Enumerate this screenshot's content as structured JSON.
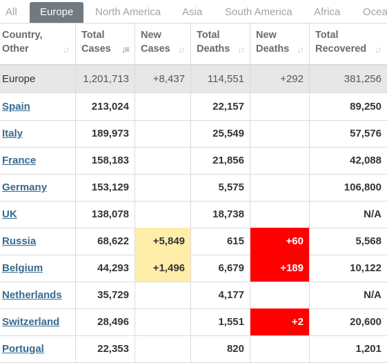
{
  "tabs": [
    "All",
    "Europe",
    "North America",
    "Asia",
    "South America",
    "Africa",
    "Ocea"
  ],
  "active_tab": "Europe",
  "headers": {
    "country": [
      "Country,",
      "Other"
    ],
    "total_cases": [
      "Total",
      "Cases"
    ],
    "new_cases": [
      "New",
      "Cases"
    ],
    "total_deaths": [
      "Total",
      "Deaths"
    ],
    "new_deaths": [
      "New",
      "Deaths"
    ],
    "total_recovered": [
      "Total",
      "Recovered"
    ]
  },
  "total_row": {
    "country": "Europe",
    "total_cases": "1,201,713",
    "new_cases": "+8,437",
    "total_deaths": "114,551",
    "new_deaths": "+292",
    "total_recovered": "381,256"
  },
  "rows": [
    {
      "country": "Spain",
      "total_cases": "213,024",
      "new_cases": "",
      "total_deaths": "22,157",
      "new_deaths": "",
      "total_recovered": "89,250"
    },
    {
      "country": "Italy",
      "total_cases": "189,973",
      "new_cases": "",
      "total_deaths": "25,549",
      "new_deaths": "",
      "total_recovered": "57,576"
    },
    {
      "country": "France",
      "total_cases": "158,183",
      "new_cases": "",
      "total_deaths": "21,856",
      "new_deaths": "",
      "total_recovered": "42,088"
    },
    {
      "country": "Germany",
      "total_cases": "153,129",
      "new_cases": "",
      "total_deaths": "5,575",
      "new_deaths": "",
      "total_recovered": "106,800"
    },
    {
      "country": "UK",
      "total_cases": "138,078",
      "new_cases": "",
      "total_deaths": "18,738",
      "new_deaths": "",
      "total_recovered": "N/A"
    },
    {
      "country": "Russia",
      "total_cases": "68,622",
      "new_cases": "+5,849",
      "total_deaths": "615",
      "new_deaths": "+60",
      "total_recovered": "5,568"
    },
    {
      "country": "Belgium",
      "total_cases": "44,293",
      "new_cases": "+1,496",
      "total_deaths": "6,679",
      "new_deaths": "+189",
      "total_recovered": "10,122"
    },
    {
      "country": "Netherlands",
      "total_cases": "35,729",
      "new_cases": "",
      "total_deaths": "4,177",
      "new_deaths": "",
      "total_recovered": "N/A"
    },
    {
      "country": "Switzerland",
      "total_cases": "28,496",
      "new_cases": "",
      "total_deaths": "1,551",
      "new_deaths": "+2",
      "total_recovered": "20,600"
    },
    {
      "country": "Portugal",
      "total_cases": "22,353",
      "new_cases": "",
      "total_deaths": "820",
      "new_deaths": "",
      "total_recovered": "1,201"
    }
  ],
  "colors": {
    "active_tab_bg": "#6f7b80",
    "new_cases_highlight": "#ffeeaa",
    "new_deaths_highlight": "#ff0000",
    "link": "#366b8f",
    "total_row_bg": "#e7e7e7"
  },
  "icons": {
    "sort": "sort-icon",
    "sort_active": "sort-desc-icon"
  }
}
